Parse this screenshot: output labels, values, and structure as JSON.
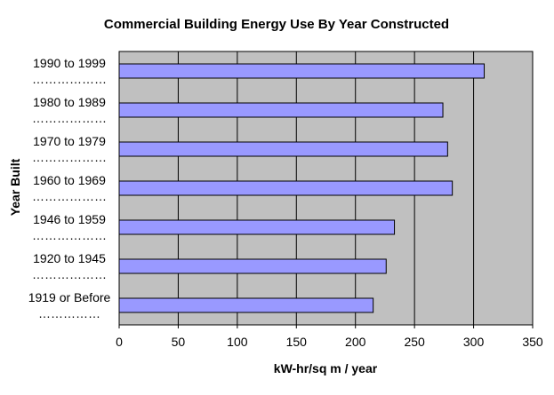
{
  "chart_data": {
    "type": "bar",
    "orientation": "horizontal",
    "title": "Commercial Building Energy Use By Year Constructed",
    "xlabel": "kW-hr/sq m / year",
    "ylabel": "Year Built",
    "categories": [
      "1990 to 1999",
      "1980 to 1989",
      "1970 to 1979",
      "1960 to 1969",
      "1946 to 1959",
      "1920 to 1945",
      "1919 or Before"
    ],
    "category_dots": [
      "………………",
      "………………",
      "………………",
      "………………",
      "………………",
      "………………",
      "……………"
    ],
    "values": [
      309,
      274,
      278,
      282,
      233,
      226,
      215
    ],
    "xlim": [
      0,
      350
    ],
    "xticks": [
      0,
      50,
      100,
      150,
      200,
      250,
      300,
      350
    ],
    "grid": true,
    "legend": "none",
    "colors": {
      "bar": "#9999ff",
      "plot_bg": "#c0c0c0",
      "grid": "#000000"
    }
  }
}
